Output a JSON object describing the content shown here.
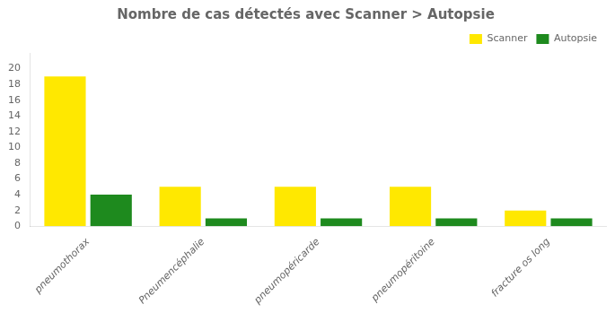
{
  "chart_data": {
    "type": "bar",
    "title": "Nombre de cas détectés avec Scanner > Autopsie",
    "categories": [
      "pneumothorax",
      "Pneumencéphalie",
      "pneumopéricarde",
      "pneumopéritoine",
      "fracture os long"
    ],
    "series": [
      {
        "name": "Scanner",
        "color": "#FFE800",
        "values": [
          19,
          5,
          5,
          5,
          2
        ]
      },
      {
        "name": "Autopsie",
        "color": "#1E8A1E",
        "values": [
          4,
          1,
          1,
          1,
          1
        ]
      }
    ],
    "ylim": [
      0,
      22
    ],
    "yticks": [
      0,
      2,
      4,
      6,
      8,
      10,
      12,
      14,
      16,
      18,
      20
    ],
    "grid": false,
    "legend": "upper right"
  }
}
